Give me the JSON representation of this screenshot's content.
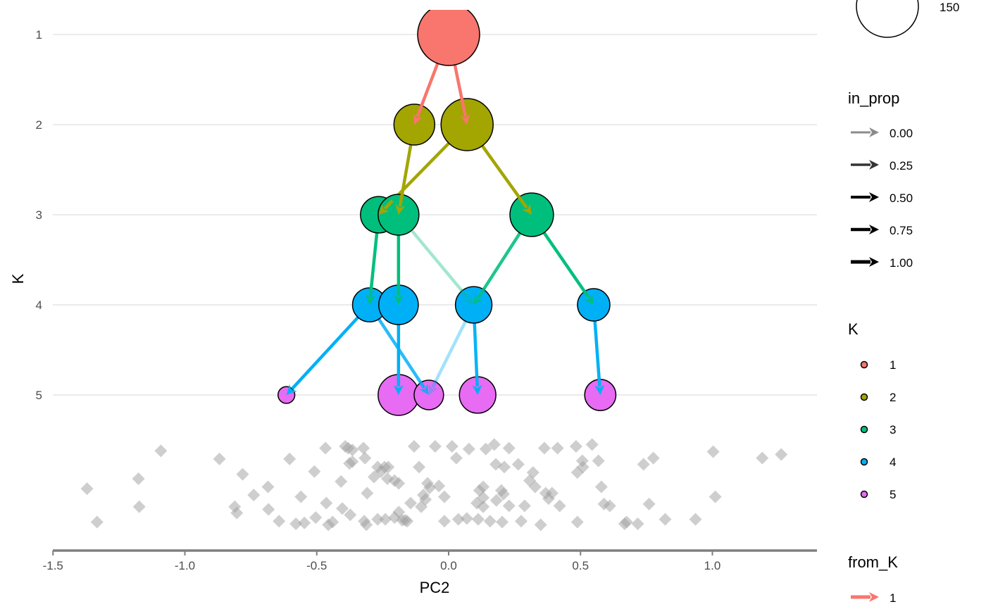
{
  "chart_data": {
    "type": "tree",
    "xlabel": "PC2",
    "ylabel": "K",
    "xlim": [
      -1.5,
      1.4
    ],
    "xticks": [
      "-1.5",
      "-1.0",
      "-0.5",
      "0.0",
      "0.5",
      "1.0"
    ],
    "xtick_values": [
      -1.5,
      -1.0,
      -0.5,
      0.0,
      0.5,
      1.0
    ],
    "yticks": [
      "1",
      "2",
      "3",
      "4",
      "5"
    ],
    "ytick_values": [
      1,
      2,
      3,
      4,
      5
    ],
    "y_reversed": true,
    "grid": "horizontal major",
    "colors": {
      "1": "#F8766D",
      "2": "#A3A500",
      "3": "#00BF7D",
      "4": "#00B0F6",
      "5": "#E76BF3",
      "points": "#9e9e9e",
      "axis": "#7f7f7f"
    },
    "nodes": [
      {
        "id": "1_1",
        "K": 1,
        "x": 0.0,
        "size": 150
      },
      {
        "id": "2_1",
        "K": 2,
        "x": -0.13,
        "size": 65
      },
      {
        "id": "2_2",
        "K": 2,
        "x": 0.07,
        "size": 106
      },
      {
        "id": "3_1",
        "K": 3,
        "x": -0.265,
        "size": 52
      },
      {
        "id": "3_2",
        "K": 3,
        "x": -0.19,
        "size": 65
      },
      {
        "id": "3_3",
        "K": 3,
        "x": 0.315,
        "size": 74
      },
      {
        "id": "4_1",
        "K": 4,
        "x": -0.3,
        "size": 45
      },
      {
        "id": "4_2",
        "K": 4,
        "x": -0.19,
        "size": 61
      },
      {
        "id": "4_3",
        "K": 4,
        "x": 0.095,
        "size": 52
      },
      {
        "id": "4_4",
        "K": 4,
        "x": 0.55,
        "size": 41
      },
      {
        "id": "5_1",
        "K": 5,
        "x": -0.615,
        "size": 11
      },
      {
        "id": "5_2",
        "K": 5,
        "x": -0.19,
        "size": 65
      },
      {
        "id": "5_3",
        "K": 5,
        "x": -0.075,
        "size": 34
      },
      {
        "id": "5_4",
        "K": 5,
        "x": 0.11,
        "size": 52
      },
      {
        "id": "5_5",
        "K": 5,
        "x": 0.575,
        "size": 38
      }
    ],
    "edges": [
      {
        "from": "1_1",
        "to": "2_1",
        "from_K": 1,
        "in_prop": 1.0
      },
      {
        "from": "1_1",
        "to": "2_2",
        "from_K": 1,
        "in_prop": 1.0
      },
      {
        "from": "2_1",
        "to": "3_2",
        "from_K": 2,
        "in_prop": 1.0
      },
      {
        "from": "2_2",
        "to": "3_1",
        "from_K": 2,
        "in_prop": 1.0
      },
      {
        "from": "2_2",
        "to": "3_3",
        "from_K": 2,
        "in_prop": 1.0
      },
      {
        "from": "3_1",
        "to": "4_1",
        "from_K": 3,
        "in_prop": 1.0
      },
      {
        "from": "3_2",
        "to": "4_2",
        "from_K": 3,
        "in_prop": 1.0
      },
      {
        "from": "3_2",
        "to": "4_3",
        "from_K": 3,
        "in_prop": 0.2
      },
      {
        "from": "3_3",
        "to": "4_3",
        "from_K": 3,
        "in_prop": 0.85
      },
      {
        "from": "3_3",
        "to": "4_4",
        "from_K": 3,
        "in_prop": 1.0
      },
      {
        "from": "4_1",
        "to": "5_1",
        "from_K": 4,
        "in_prop": 1.0
      },
      {
        "from": "4_1",
        "to": "5_3",
        "from_K": 4,
        "in_prop": 0.8
      },
      {
        "from": "4_2",
        "to": "5_2",
        "from_K": 4,
        "in_prop": 1.0
      },
      {
        "from": "4_3",
        "to": "5_3",
        "from_K": 4,
        "in_prop": 0.2
      },
      {
        "from": "4_3",
        "to": "5_4",
        "from_K": 4,
        "in_prop": 0.95
      },
      {
        "from": "4_4",
        "to": "5_5",
        "from_K": 4,
        "in_prop": 1.0
      }
    ],
    "points": [
      [
        -1.371,
        6.04
      ],
      [
        -1.333,
        6.41
      ],
      [
        -1.176,
        5.93
      ],
      [
        -1.173,
        6.24
      ],
      [
        -1.091,
        5.62
      ],
      [
        -0.869,
        5.71
      ],
      [
        -0.811,
        6.24
      ],
      [
        -0.803,
        6.31
      ],
      [
        -0.781,
        5.88
      ],
      [
        -0.739,
        6.11
      ],
      [
        -0.685,
        6.02
      ],
      [
        -0.683,
        6.27
      ],
      [
        -0.643,
        6.4
      ],
      [
        -0.603,
        5.71
      ],
      [
        -0.579,
        6.43
      ],
      [
        -0.56,
        6.13
      ],
      [
        -0.547,
        6.42
      ],
      [
        -0.509,
        5.85
      ],
      [
        -0.504,
        6.36
      ],
      [
        -0.467,
        5.59
      ],
      [
        -0.464,
        6.2
      ],
      [
        -0.456,
        6.44
      ],
      [
        -0.44,
        6.41
      ],
      [
        -0.408,
        5.96
      ],
      [
        -0.403,
        6.26
      ],
      [
        -0.392,
        5.57
      ],
      [
        -0.381,
        5.59
      ],
      [
        -0.376,
        5.76
      ],
      [
        -0.365,
        5.61
      ],
      [
        -0.365,
        5.74
      ],
      [
        -0.373,
        6.33
      ],
      [
        -0.323,
        5.59
      ],
      [
        -0.317,
        5.7
      ],
      [
        -0.309,
        6.09
      ],
      [
        -0.32,
        6.4
      ],
      [
        -0.312,
        6.44
      ],
      [
        -0.283,
        5.91
      ],
      [
        -0.269,
        5.8
      ],
      [
        -0.269,
        6.38
      ],
      [
        -0.256,
        5.85
      ],
      [
        -0.243,
        5.8
      ],
      [
        -0.24,
        6.38
      ],
      [
        -0.232,
        5.93
      ],
      [
        -0.229,
        5.8
      ],
      [
        -0.205,
        5.95
      ],
      [
        -0.205,
        6.36
      ],
      [
        -0.189,
        5.98
      ],
      [
        -0.189,
        6.3
      ],
      [
        -0.176,
        6.39
      ],
      [
        -0.165,
        6.39
      ],
      [
        -0.157,
        6.4
      ],
      [
        -0.144,
        6.2
      ],
      [
        -0.131,
        5.57
      ],
      [
        -0.112,
        5.8
      ],
      [
        -0.104,
        6.24
      ],
      [
        -0.096,
        6.11
      ],
      [
        -0.088,
        6.16
      ],
      [
        -0.08,
        5.98
      ],
      [
        -0.072,
        6.03
      ],
      [
        -0.051,
        5.57
      ],
      [
        -0.037,
        6.01
      ],
      [
        -0.016,
        6.13
      ],
      [
        -0.016,
        6.4
      ],
      [
        0.013,
        5.57
      ],
      [
        0.029,
        5.7
      ],
      [
        0.037,
        6.38
      ],
      [
        0.069,
        6.37
      ],
      [
        0.077,
        5.6
      ],
      [
        0.107,
        6.2
      ],
      [
        0.112,
        6.38
      ],
      [
        0.117,
        6.06
      ],
      [
        0.131,
        6.02
      ],
      [
        0.131,
        6.14
      ],
      [
        0.131,
        6.24
      ],
      [
        0.141,
        5.6
      ],
      [
        0.157,
        6.4
      ],
      [
        0.173,
        5.55
      ],
      [
        0.179,
        5.77
      ],
      [
        0.181,
        6.17
      ],
      [
        0.2,
        6.06
      ],
      [
        0.203,
        6.41
      ],
      [
        0.208,
        6.1
      ],
      [
        0.211,
        5.8
      ],
      [
        0.229,
        5.59
      ],
      [
        0.229,
        6.23
      ],
      [
        0.264,
        5.77
      ],
      [
        0.275,
        6.4
      ],
      [
        0.288,
        6.23
      ],
      [
        0.307,
        5.95
      ],
      [
        0.32,
        5.86
      ],
      [
        0.328,
        6.02
      ],
      [
        0.349,
        6.44
      ],
      [
        0.363,
        5.59
      ],
      [
        0.368,
        6.09
      ],
      [
        0.379,
        6.15
      ],
      [
        0.392,
        6.09
      ],
      [
        0.413,
        5.59
      ],
      [
        0.421,
        6.23
      ],
      [
        0.483,
        5.57
      ],
      [
        0.488,
        5.86
      ],
      [
        0.488,
        6.41
      ],
      [
        0.507,
        5.73
      ],
      [
        0.509,
        5.8
      ],
      [
        0.544,
        5.55
      ],
      [
        0.568,
        5.73
      ],
      [
        0.579,
        6.02
      ],
      [
        0.589,
        6.21
      ],
      [
        0.611,
        6.23
      ],
      [
        0.667,
        6.43
      ],
      [
        0.675,
        6.41
      ],
      [
        0.717,
        6.43
      ],
      [
        0.739,
        5.77
      ],
      [
        0.76,
        6.21
      ],
      [
        0.776,
        5.7
      ],
      [
        0.821,
        6.38
      ],
      [
        0.936,
        6.38
      ],
      [
        1.003,
        5.63
      ],
      [
        1.011,
        6.13
      ],
      [
        1.189,
        5.7
      ],
      [
        1.261,
        5.66
      ]
    ]
  },
  "legends": {
    "size": {
      "items": [
        {
          "label": "150",
          "value": 150
        }
      ]
    },
    "in_prop": {
      "title": "in_prop",
      "items": [
        "0.00",
        "0.25",
        "0.50",
        "0.75",
        "1.00"
      ],
      "values": [
        0,
        0.25,
        0.5,
        0.75,
        1.0
      ]
    },
    "K": {
      "title": "K",
      "items": [
        "1",
        "2",
        "3",
        "4",
        "5"
      ]
    },
    "from_K": {
      "title": "from_K",
      "items": [
        "1"
      ]
    }
  }
}
